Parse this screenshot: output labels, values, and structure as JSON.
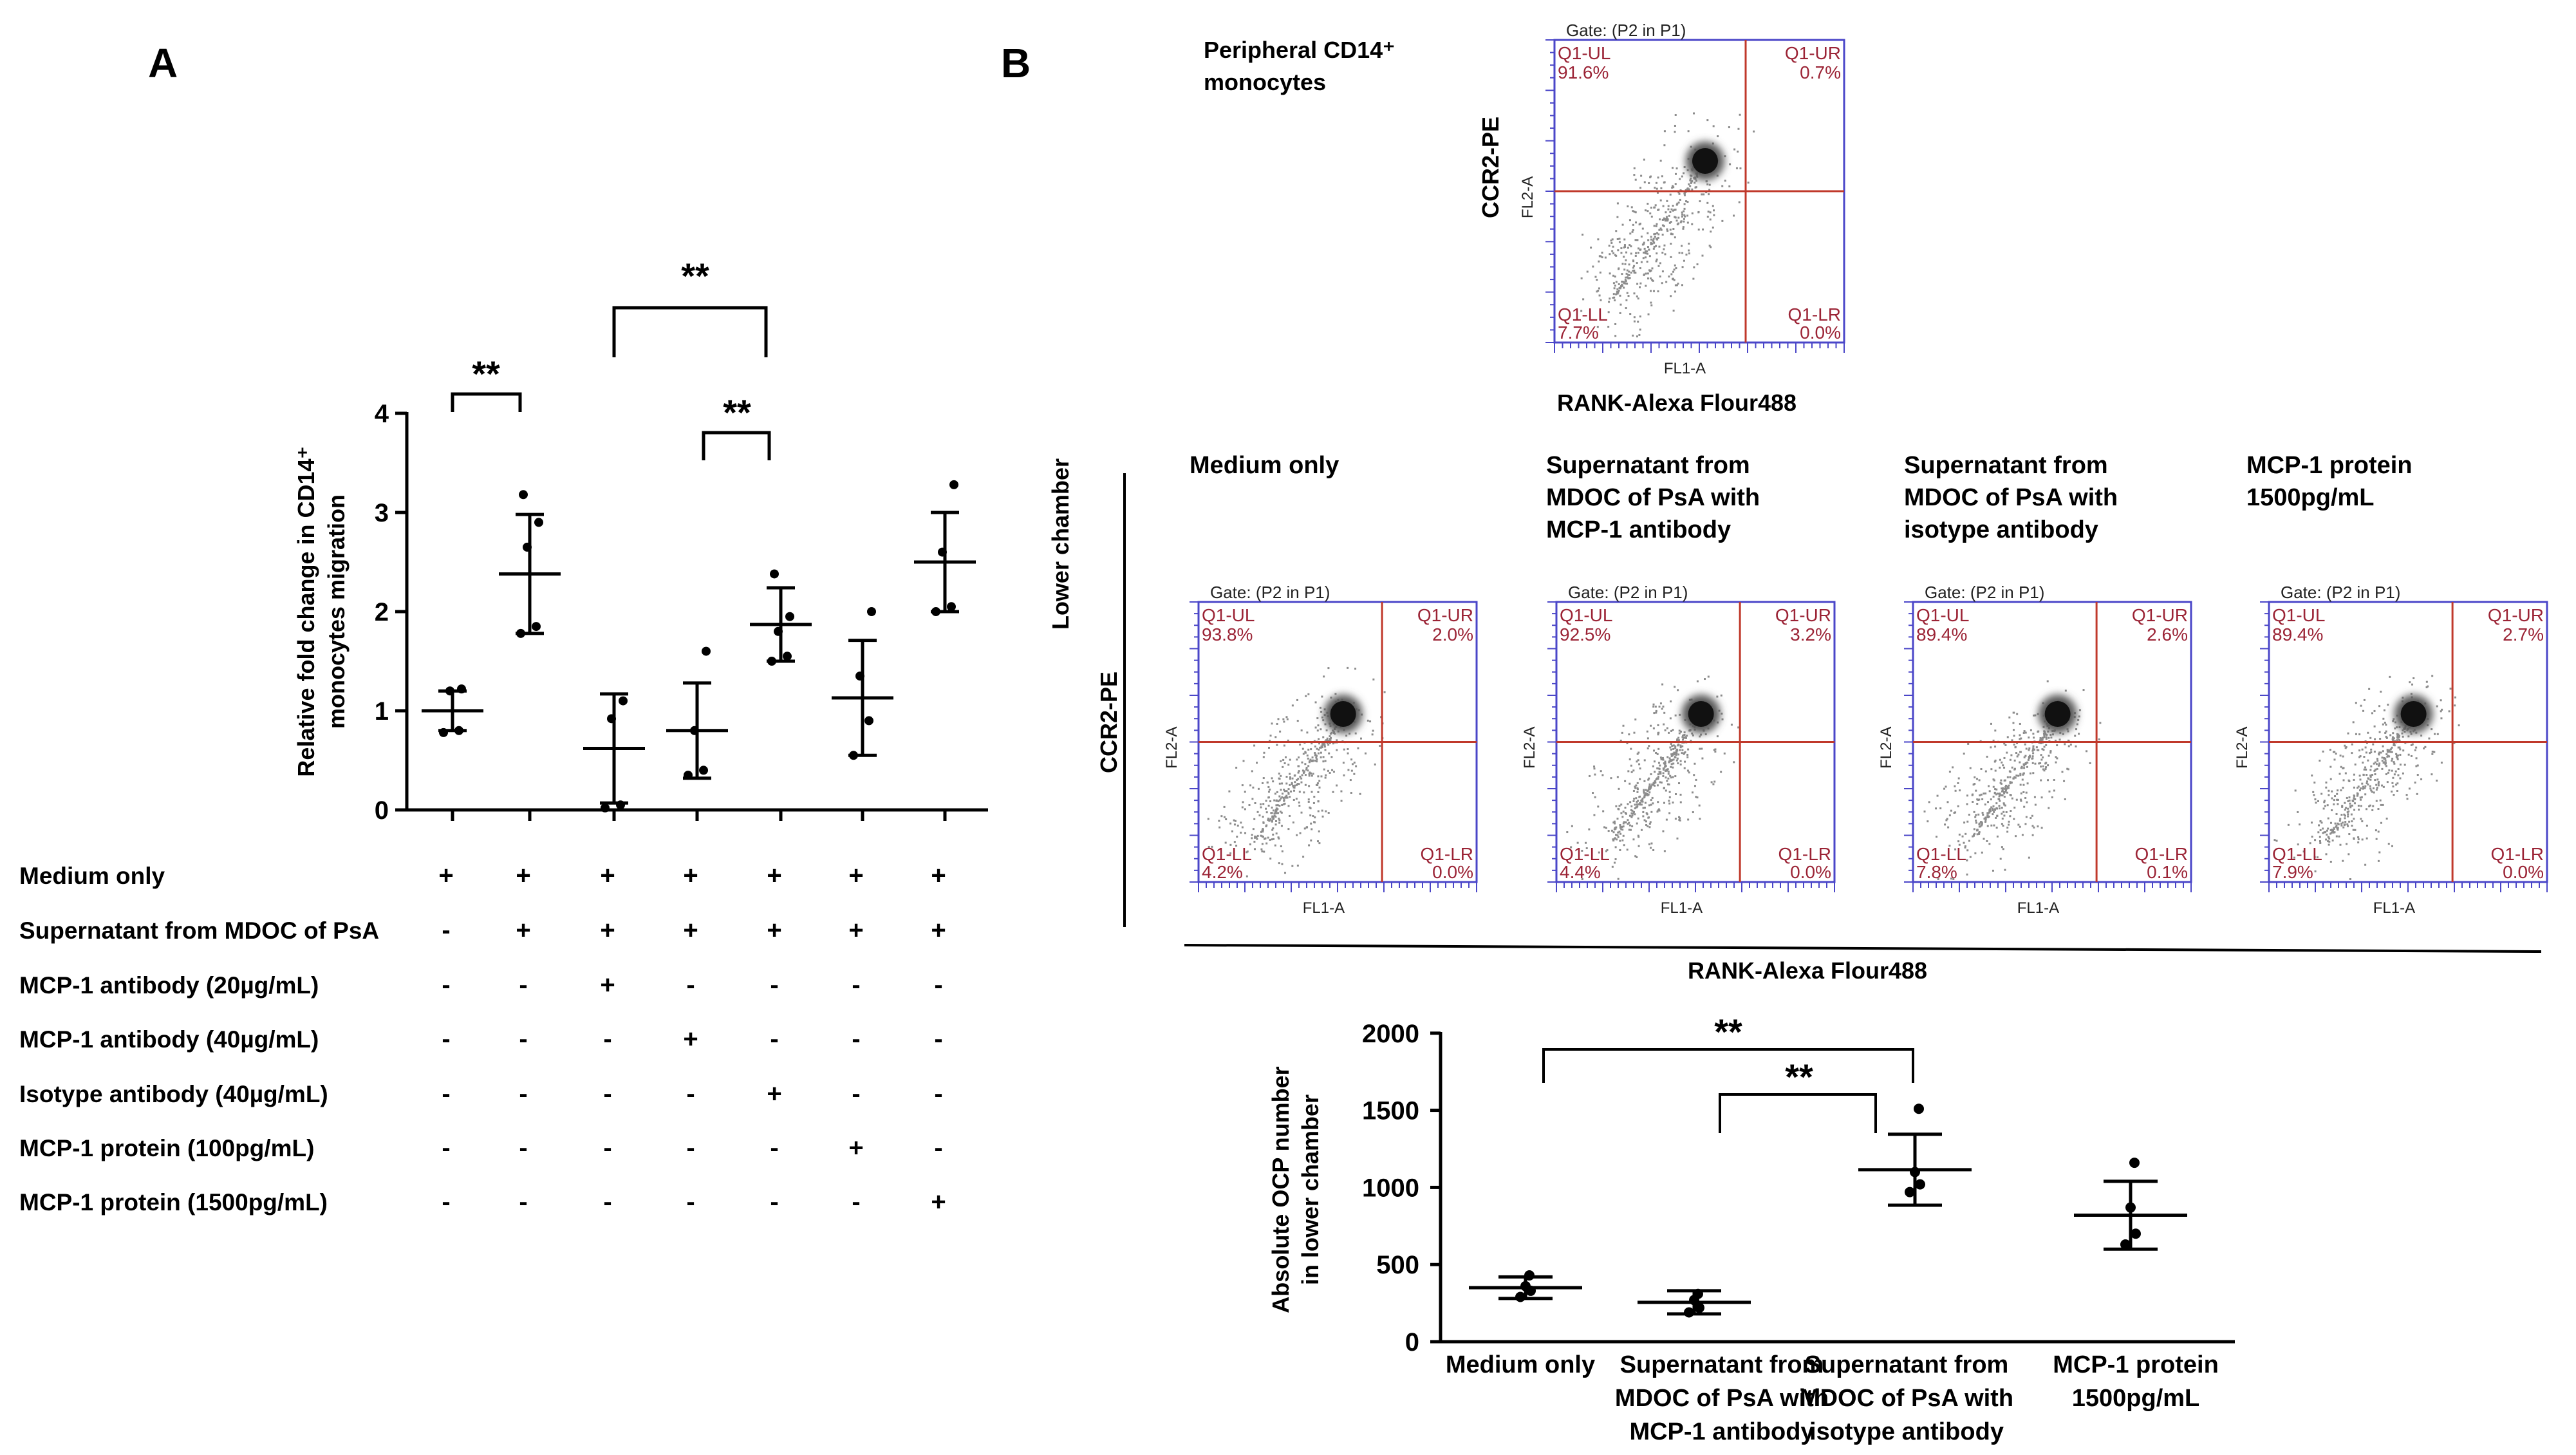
{
  "panel_a": {
    "letter": "A",
    "ylabel_line1": "Relative fold change in CD14⁺",
    "ylabel_line2": "monocytes migration",
    "sig": [
      "**",
      "**",
      "**"
    ],
    "row_labels": [
      "Medium only",
      "Supernatant from MDOC of PsA",
      "MCP-1 antibody (20µg/mL)",
      "MCP-1 antibody (40µg/mL)",
      "Isotype  antibody (40µg/mL)",
      "MCP-1 protein (100pg/mL)",
      "MCP-1 protein (1500pg/mL)"
    ],
    "matrix": [
      [
        "+",
        "+",
        "+",
        "+",
        "+",
        "+",
        "+"
      ],
      [
        "-",
        "+",
        "+",
        "+",
        "+",
        "+",
        "+"
      ],
      [
        "-",
        "-",
        "+",
        "-",
        "-",
        "-",
        "-"
      ],
      [
        "-",
        "-",
        "-",
        "+",
        "-",
        "-",
        "-"
      ],
      [
        "-",
        "-",
        "-",
        "-",
        "+",
        "-",
        "-"
      ],
      [
        "-",
        "-",
        "-",
        "-",
        "-",
        "+",
        "-"
      ],
      [
        "-",
        "-",
        "-",
        "-",
        "-",
        "-",
        "+"
      ]
    ]
  },
  "panel_b": {
    "letter": "B",
    "top_caption_line1": "Peripheral CD14⁺",
    "top_caption_line2": "monocytes",
    "ccr2_label": "CCR2-PE",
    "rank_label": "RANK-Alexa Flour488",
    "lower_chamber_label": "Lower chamber",
    "facs_gate": "Gate: (P2 in P1)",
    "facs_xaxis": "FL1-A",
    "facs_yaxis": "FL2-A",
    "facs_top": {
      "ul": "91.6%",
      "ur": "0.7%",
      "ll": "7.7%",
      "lr": "0.0%"
    },
    "facs_panels": [
      {
        "caption": [
          "Medium only"
        ],
        "ul": "93.8%",
        "ur": "2.0%",
        "ll": "4.2%",
        "lr": "0.0%"
      },
      {
        "caption": [
          "Supernatant from",
          "MDOC of PsA with",
          "MCP-1  antibody"
        ],
        "ul": "92.5%",
        "ur": "3.2%",
        "ll": "4.4%",
        "lr": "0.0%"
      },
      {
        "caption": [
          "Supernatant from",
          "MDOC of PsA with",
          "isotype  antibody"
        ],
        "ul": "89.4%",
        "ur": "2.6%",
        "ll": "7.8%",
        "lr": "0.1%"
      },
      {
        "caption": [
          "MCP-1 protein",
          "1500pg/mL"
        ],
        "ul": "89.4%",
        "ur": "2.7%",
        "ll": "7.9%",
        "lr": "0.0%"
      }
    ],
    "quadrant_names": {
      "ul": "Q1-UL",
      "ur": "Q1-UR",
      "ll": "Q1-LL",
      "lr": "Q1-LR"
    },
    "ylabel_line1": "Absolute OCP number",
    "ylabel_line2": "in lower chamber",
    "sig": [
      "**",
      "**"
    ],
    "xcat_labels": [
      [
        "Medium only"
      ],
      [
        "Supernatant from",
        "MDOC of PsA with",
        "MCP-1  antibody"
      ],
      [
        "Supernatant from",
        "MDOC of PsA with",
        "isotype  antibody"
      ],
      [
        "MCP-1 protein",
        "1500pg/mL"
      ]
    ]
  },
  "chart_data": [
    {
      "type": "scatter",
      "name": "A",
      "ylabel": "Relative fold change in CD14⁺ monocytes migration",
      "ylim": [
        0,
        4
      ],
      "yticks": [
        0,
        1,
        2,
        3,
        4
      ],
      "groups": [
        {
          "mean": 1.0,
          "sd": 0.2,
          "points": [
            0.78,
            0.8,
            1.2,
            1.22
          ]
        },
        {
          "mean": 2.38,
          "sd": 0.6,
          "points": [
            1.78,
            1.85,
            2.65,
            2.9,
            3.18
          ]
        },
        {
          "mean": 0.62,
          "sd": 0.55,
          "points": [
            0.02,
            0.05,
            0.92,
            1.1
          ]
        },
        {
          "mean": 0.8,
          "sd": 0.48,
          "points": [
            0.35,
            0.4,
            0.8,
            1.6
          ]
        },
        {
          "mean": 1.87,
          "sd": 0.37,
          "points": [
            1.5,
            1.55,
            1.8,
            1.95,
            2.38
          ]
        },
        {
          "mean": 1.13,
          "sd": 0.58,
          "points": [
            0.55,
            0.9,
            1.35,
            2.0
          ]
        },
        {
          "mean": 2.5,
          "sd": 0.5,
          "points": [
            2.0,
            2.05,
            2.6,
            3.28
          ]
        }
      ],
      "significance": [
        {
          "from": 0,
          "to": 1,
          "label": "**"
        },
        {
          "from": 2,
          "to": 4,
          "label": "**"
        },
        {
          "from": 3,
          "to": 4,
          "label": "**"
        }
      ]
    },
    {
      "type": "scatter",
      "name": "B",
      "ylabel": "Absolute OCP number in lower chamber",
      "categories": [
        "Medium only",
        "Supernatant from MDOC of PsA with MCP-1  antibody",
        "Supernatant from MDOC of PsA with isotype  antibody",
        "MCP-1 protein 1500pg/mL"
      ],
      "ylim": [
        0,
        2000
      ],
      "yticks": [
        0,
        500,
        1000,
        1500,
        2000
      ],
      "groups": [
        {
          "mean": 350,
          "sd": 70,
          "points": [
            290,
            330,
            360,
            430
          ]
        },
        {
          "mean": 255,
          "sd": 75,
          "points": [
            190,
            220,
            270,
            310
          ]
        },
        {
          "mean": 1115,
          "sd": 230,
          "points": [
            970,
            1020,
            1100,
            1510
          ]
        },
        {
          "mean": 820,
          "sd": 220,
          "points": [
            630,
            700,
            870,
            1160
          ]
        }
      ],
      "significance": [
        {
          "from": 0,
          "to": 2,
          "label": "**"
        },
        {
          "from": 1,
          "to": 2,
          "label": "**"
        }
      ]
    },
    {
      "type": "scatter",
      "name": "flow-cytometry",
      "xlabel": "FL1-A",
      "ylabel": "FL2-A",
      "panels": [
        {
          "id": "peripheral",
          "UL": 91.6,
          "UR": 0.7,
          "LL": 7.7,
          "LR": 0.0
        },
        {
          "id": "medium",
          "UL": 93.8,
          "UR": 2.0,
          "LL": 4.2,
          "LR": 0.0
        },
        {
          "id": "mcp1-ab",
          "UL": 92.5,
          "UR": 3.2,
          "LL": 4.4,
          "LR": 0.0
        },
        {
          "id": "isotype",
          "UL": 89.4,
          "UR": 2.6,
          "LL": 7.8,
          "LR": 0.1
        },
        {
          "id": "mcp1-protein",
          "UL": 89.4,
          "UR": 2.7,
          "LL": 7.9,
          "LR": 0.0
        }
      ]
    }
  ]
}
